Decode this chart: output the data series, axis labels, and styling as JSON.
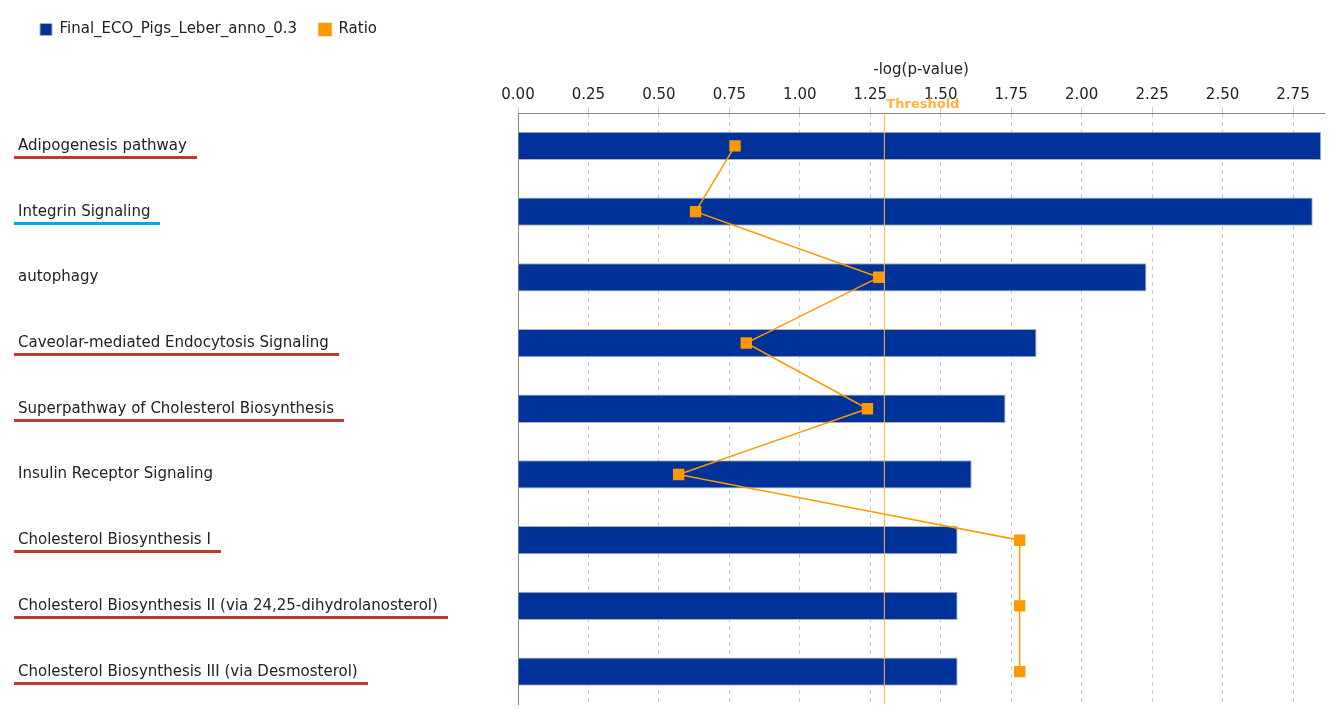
{
  "chart_data": {
    "type": "bar",
    "orientation": "horizontal",
    "xlabel": "-log(p-value)",
    "categories": [
      "Adipogenesis pathway",
      "Integrin Signaling",
      "autophagy",
      "Caveolar-mediated Endocytosis Signaling",
      "Superpathway of Cholesterol Biosynthesis",
      "Insulin Receptor Signaling",
      "Cholesterol Biosynthesis I",
      "Cholesterol Biosynthesis II (via 24,25-dihydrolanosterol)",
      "Cholesterol Biosynthesis III (via Desmosterol)"
    ],
    "series": [
      {
        "name": "Final_ECO_Pigs_Leber_anno_0.3",
        "color": "#003399",
        "values": [
          2.85,
          2.82,
          2.23,
          1.84,
          1.73,
          1.61,
          1.56,
          1.56,
          1.56
        ]
      },
      {
        "name": "Ratio",
        "type": "line",
        "color": "#ff9900",
        "marker": "square",
        "values": [
          0.77,
          0.63,
          1.28,
          0.81,
          1.24,
          0.57,
          1.78,
          1.78,
          1.78
        ]
      }
    ],
    "xlim": [
      0,
      2.86
    ],
    "xticks": [
      {
        "value": 0,
        "label": "0.00"
      },
      {
        "value": 0.25,
        "label": "0.25"
      },
      {
        "value": 0.5,
        "label": "0.50"
      },
      {
        "value": 0.75,
        "label": "0.75"
      },
      {
        "value": 1,
        "label": "1.00"
      },
      {
        "value": 1.25,
        "label": "1.25"
      },
      {
        "value": 1.5,
        "label": "1.50"
      },
      {
        "value": 1.75,
        "label": "1.75"
      },
      {
        "value": 2,
        "label": "2.00"
      },
      {
        "value": 2.25,
        "label": "2.25"
      },
      {
        "value": 2.5,
        "label": "2.50"
      },
      {
        "value": 2.75,
        "label": "2.75"
      }
    ],
    "ref_lines": [
      {
        "axis": "x",
        "value": 1.3,
        "label": "Threshold",
        "color": "#ffb23f"
      }
    ],
    "grid": "x",
    "legend": "top left"
  }
}
